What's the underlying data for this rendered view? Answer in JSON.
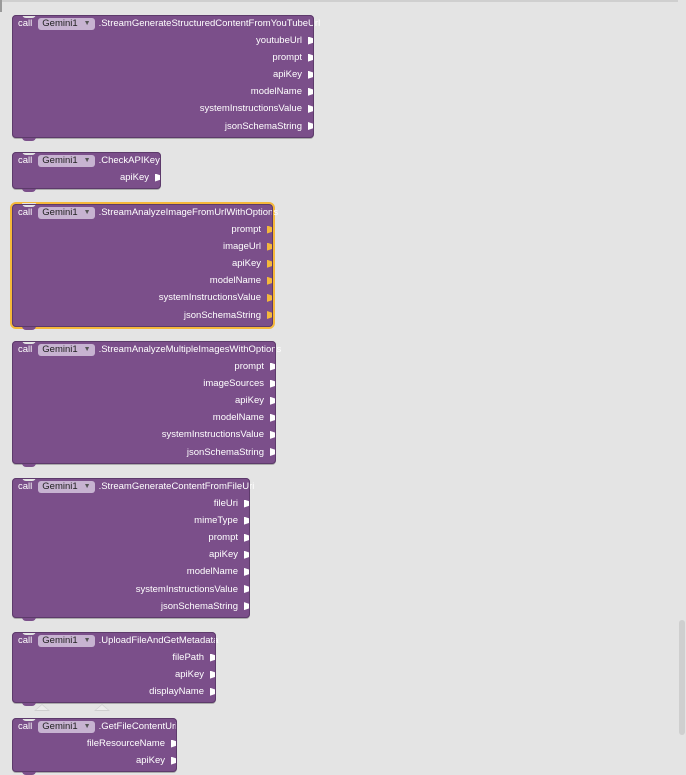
{
  "theme": {
    "block_color": "#7b4f8a",
    "component_dropdown_color": "#c7b3d1",
    "selected_outline_color": "#f5b83a",
    "workspace_color": "#e4e4e4"
  },
  "blocks": [
    {
      "call_label": "call",
      "component": "Gemini1",
      "method": ".StreamGenerateStructuredContentFromYouTubeUrl",
      "params": [
        "youtubeUrl",
        "prompt",
        "apiKey",
        "modelName",
        "systemInstructionsValue",
        "jsonSchemaString"
      ],
      "selected": false
    },
    {
      "call_label": "call",
      "component": "Gemini1",
      "method": ".CheckAPIKey",
      "params": [
        "apiKey"
      ],
      "selected": false
    },
    {
      "call_label": "call",
      "component": "Gemini1",
      "method": ".StreamAnalyzeImageFromUrlWithOptions",
      "params": [
        "prompt",
        "imageUrl",
        "apiKey",
        "modelName",
        "systemInstructionsValue",
        "jsonSchemaString"
      ],
      "selected": true
    },
    {
      "call_label": "call",
      "component": "Gemini1",
      "method": ".StreamAnalyzeMultipleImagesWithOptions",
      "params": [
        "prompt",
        "imageSources",
        "apiKey",
        "modelName",
        "systemInstructionsValue",
        "jsonSchemaString"
      ],
      "selected": false
    },
    {
      "call_label": "call",
      "component": "Gemini1",
      "method": ".StreamGenerateContentFromFileUri",
      "params": [
        "fileUri",
        "mimeType",
        "prompt",
        "apiKey",
        "modelName",
        "systemInstructionsValue",
        "jsonSchemaString"
      ],
      "selected": false
    },
    {
      "call_label": "call",
      "component": "Gemini1",
      "method": ".UploadFileAndGetMetadata",
      "params": [
        "filePath",
        "apiKey",
        "displayName"
      ],
      "selected": false
    },
    {
      "call_label": "call",
      "component": "Gemini1",
      "method": ".GetFileContentUri",
      "params": [
        "fileResourceName",
        "apiKey"
      ],
      "selected": false
    }
  ]
}
